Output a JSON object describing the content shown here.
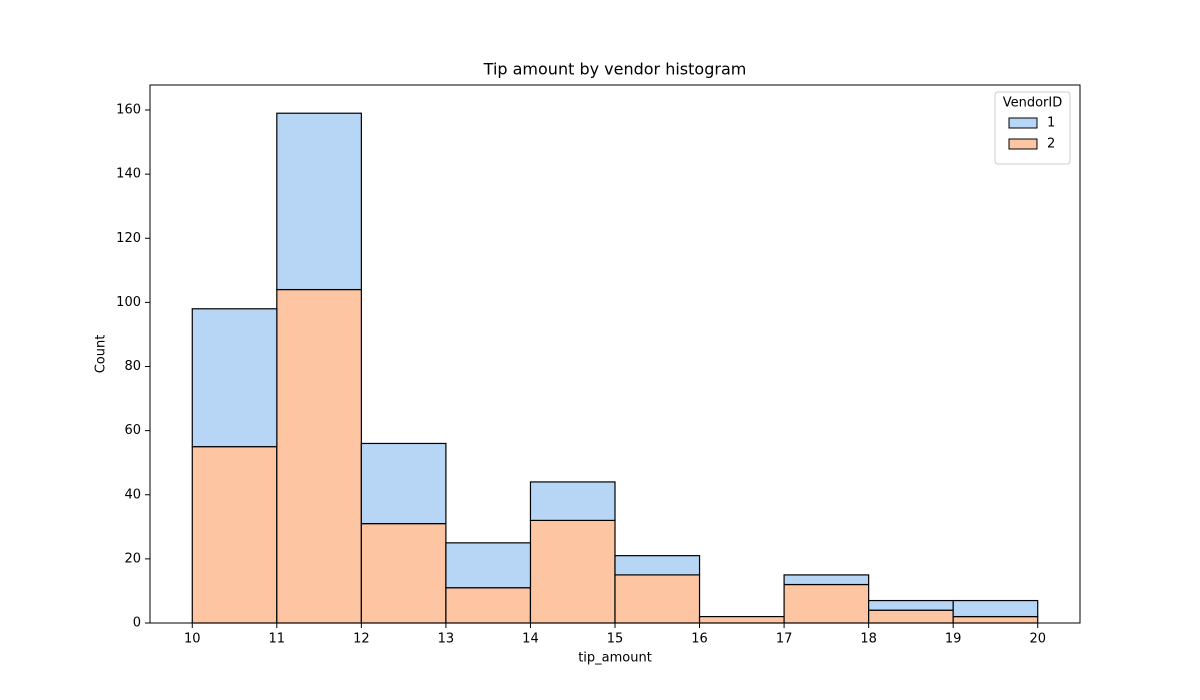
{
  "chart_data": {
    "type": "histogram",
    "title": "Tip amount by vendor histogram",
    "x_label": "tip_amount",
    "y_label": "Count",
    "bins": [
      10,
      11,
      12,
      13,
      14,
      15,
      16,
      17,
      18,
      19,
      20
    ],
    "stacked": true,
    "series": [
      {
        "name": "1",
        "color": "#b7d6f5",
        "values": [
          43,
          55,
          25,
          14,
          12,
          6,
          0,
          3,
          3,
          5
        ]
      },
      {
        "name": "2",
        "color": "#fec5a2",
        "values": [
          55,
          104,
          31,
          11,
          32,
          15,
          2,
          12,
          4,
          2
        ]
      }
    ],
    "legend_title": "VendorID",
    "legend": "upper right",
    "xlim": [
      9.5,
      20.5
    ],
    "xticks": [
      10,
      11,
      12,
      13,
      14,
      15,
      16,
      17,
      18,
      19,
      20
    ],
    "ylim": [
      0,
      167.8
    ],
    "yticks": [
      0,
      20,
      40,
      60,
      80,
      100,
      120,
      140,
      160
    ]
  }
}
